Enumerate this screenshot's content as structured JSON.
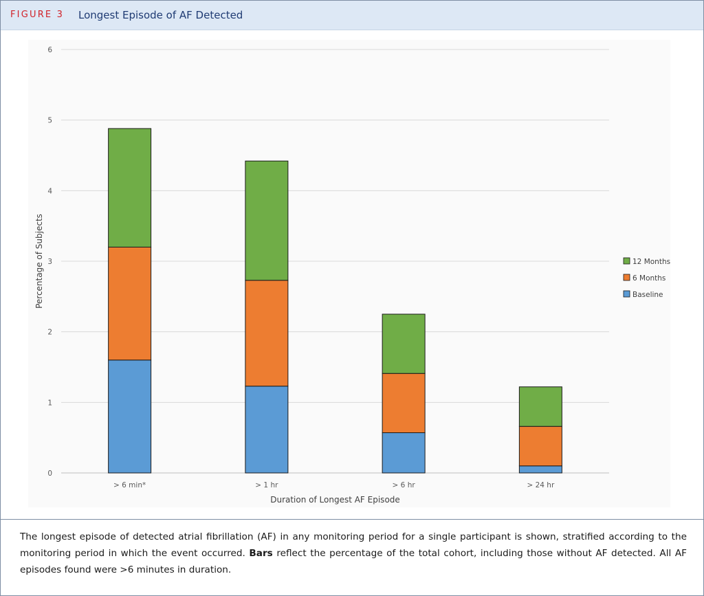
{
  "header": {
    "figure_label": "FIGURE 3",
    "figure_title": "Longest Episode of AF Detected"
  },
  "chart_data": {
    "type": "bar",
    "stacked": true,
    "categories": [
      "> 6 min*",
      "> 1 hr",
      "> 6 hr",
      "> 24 hr"
    ],
    "series": [
      {
        "name": "Baseline",
        "values": [
          1.6,
          1.23,
          0.57,
          0.1
        ],
        "color": "#5b9bd5"
      },
      {
        "name": "6 Months",
        "values": [
          1.6,
          1.5,
          0.84,
          0.56
        ],
        "color": "#ed7d31"
      },
      {
        "name": "12 Months",
        "values": [
          1.68,
          1.69,
          0.84,
          0.56
        ],
        "color": "#70ad47"
      }
    ],
    "xlabel": "Duration of Longest AF Episode",
    "ylabel": "Percentage of Subjects",
    "ylim": [
      0,
      6
    ],
    "yticks": [
      "0",
      "1",
      "2",
      "3",
      "4",
      "5",
      "6"
    ],
    "grid": true,
    "legend_position": "right",
    "legend_order": [
      "12 Months",
      "6 Months",
      "Baseline"
    ]
  },
  "caption": {
    "part1": "The longest episode of detected atrial fibrillation (AF) in any monitoring period for a single participant is shown, stratified according to the monitoring period in which the event occurred. ",
    "bold": "Bars",
    "part2": " reflect the percentage of the total cohort, including those without AF detected. All AF episodes found were >6 minutes in duration."
  }
}
